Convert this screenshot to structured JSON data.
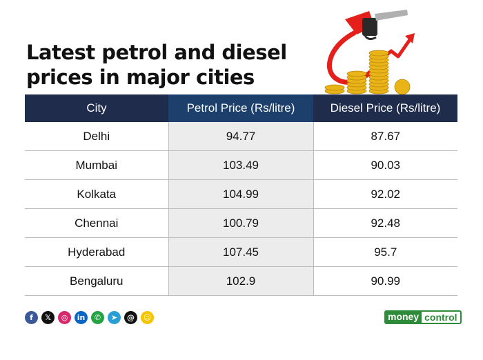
{
  "title": {
    "line1": "Latest petrol and diesel",
    "line2": "prices in major cities"
  },
  "table": {
    "headers": {
      "city": "City",
      "petrol": "Petrol Price (Rs/litre)",
      "diesel": "Diesel Price (Rs/litre)"
    },
    "rows": [
      {
        "city": "Delhi",
        "petrol": "94.77",
        "diesel": "87.67"
      },
      {
        "city": "Mumbai",
        "petrol": "103.49",
        "diesel": "90.03"
      },
      {
        "city": "Kolkata",
        "petrol": "104.99",
        "diesel": "92.02"
      },
      {
        "city": "Chennai",
        "petrol": "100.79",
        "diesel": "92.48"
      },
      {
        "city": "Hyderabad",
        "petrol": "107.45",
        "diesel": "95.7"
      },
      {
        "city": "Bengaluru",
        "petrol": "102.9",
        "diesel": "90.99"
      }
    ]
  },
  "social_icons": [
    {
      "name": "facebook-icon",
      "glyph": "f",
      "color": "#3b5998"
    },
    {
      "name": "x-icon",
      "glyph": "𝕏",
      "color": "#111111"
    },
    {
      "name": "instagram-icon",
      "glyph": "◎",
      "color": "#d6296b"
    },
    {
      "name": "linkedin-icon",
      "glyph": "in",
      "color": "#0a66c2"
    },
    {
      "name": "whatsapp-icon",
      "glyph": "✆",
      "color": "#25a244"
    },
    {
      "name": "telegram-icon",
      "glyph": "➤",
      "color": "#2a9fd6"
    },
    {
      "name": "threads-icon",
      "glyph": "@",
      "color": "#111111"
    },
    {
      "name": "snapchat-icon",
      "glyph": "☺",
      "color": "#f5c400"
    }
  ],
  "logo": {
    "part1": "money",
    "part2": "control"
  },
  "colors": {
    "header_dark": "#1f2c4c",
    "header_petrol": "#1c3f6b",
    "petrol_column": "#ececec",
    "brand_green": "#2e8b3a"
  }
}
